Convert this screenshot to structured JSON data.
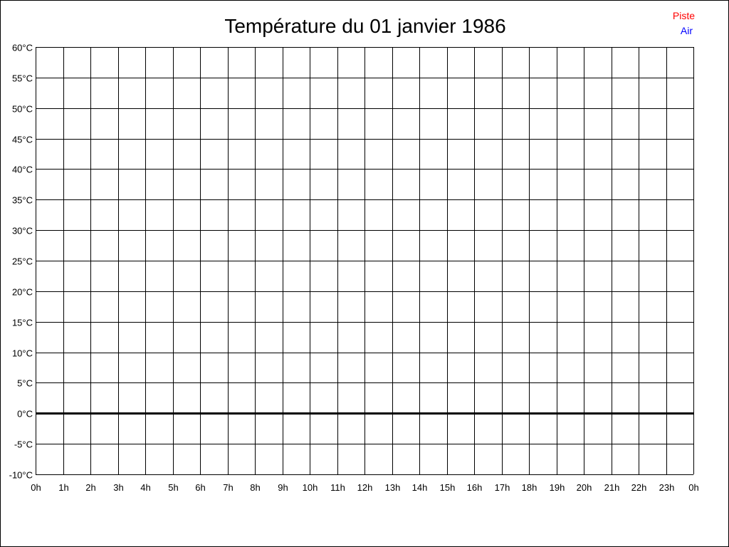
{
  "chart_data": {
    "type": "line",
    "title": "Température du 01 janvier 1986",
    "xlabel": "",
    "ylabel": "",
    "x_ticks": [
      "0h",
      "1h",
      "2h",
      "3h",
      "4h",
      "5h",
      "6h",
      "7h",
      "8h",
      "9h",
      "10h",
      "11h",
      "12h",
      "13h",
      "14h",
      "15h",
      "16h",
      "17h",
      "18h",
      "19h",
      "20h",
      "21h",
      "22h",
      "23h",
      "0h"
    ],
    "xlim": [
      0,
      24
    ],
    "y_ticks": [
      "60°C",
      "55°C",
      "50°C",
      "45°C",
      "40°C",
      "35°C",
      "30°C",
      "25°C",
      "20°C",
      "15°C",
      "10°C",
      "5°C",
      "0°C",
      "-5°C",
      "-10°C"
    ],
    "ylim": [
      -10,
      60
    ],
    "y_step": 5,
    "grid": true,
    "zero_line_emphasized": true,
    "legend_position": "top-right",
    "series": [
      {
        "name": "Piste",
        "color": "#ff0000",
        "values": []
      },
      {
        "name": "Air",
        "color": "#0000ff",
        "values": []
      }
    ]
  }
}
